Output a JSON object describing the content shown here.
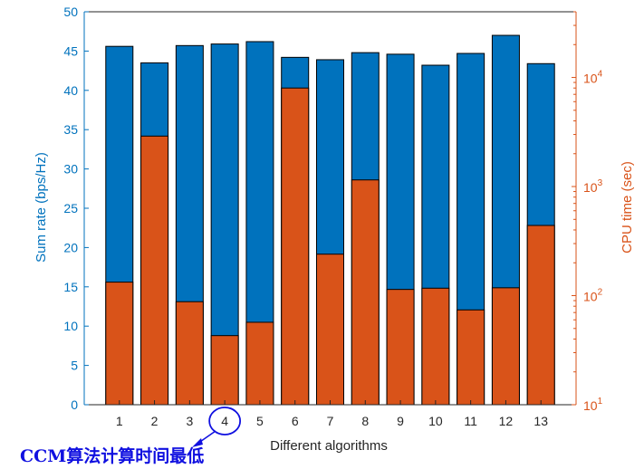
{
  "chart_data": {
    "type": "bar",
    "title": "",
    "xlabel": "Different algorithms",
    "ylabel_left": "Sum rate (bps/Hz)",
    "ylabel_right": "CPU time (sec)",
    "categories": [
      "1",
      "2",
      "3",
      "4",
      "5",
      "6",
      "7",
      "8",
      "9",
      "10",
      "11",
      "12",
      "13"
    ],
    "ylim_left": [
      0,
      50
    ],
    "yticks_left": [
      "0",
      "5",
      "10",
      "15",
      "20",
      "25",
      "30",
      "35",
      "40",
      "45",
      "50"
    ],
    "ylim_right": [
      10,
      40000
    ],
    "yscale_right": "log",
    "yticks_right": [
      {
        "base": "10",
        "exp": "1",
        "value": 10
      },
      {
        "base": "10",
        "exp": "2",
        "value": 100
      },
      {
        "base": "10",
        "exp": "3",
        "value": 1000
      },
      {
        "base": "10",
        "exp": "4",
        "value": 10000
      }
    ],
    "grid": false,
    "series": [
      {
        "name": "Sum rate",
        "axis": "left",
        "color": "#0072BD",
        "values": [
          45.6,
          43.5,
          45.7,
          45.9,
          46.2,
          44.2,
          43.9,
          44.8,
          44.6,
          43.2,
          44.7,
          47.0,
          43.4
        ]
      },
      {
        "name": "CPU time",
        "axis": "right",
        "color": "#D95319",
        "values": [
          133,
          2900,
          88,
          43,
          57,
          8000,
          240,
          1150,
          114,
          117,
          74,
          118,
          440
        ]
      }
    ],
    "annotation": {
      "text": "CCM算法计算时间最低",
      "highlight_category": "4"
    }
  }
}
